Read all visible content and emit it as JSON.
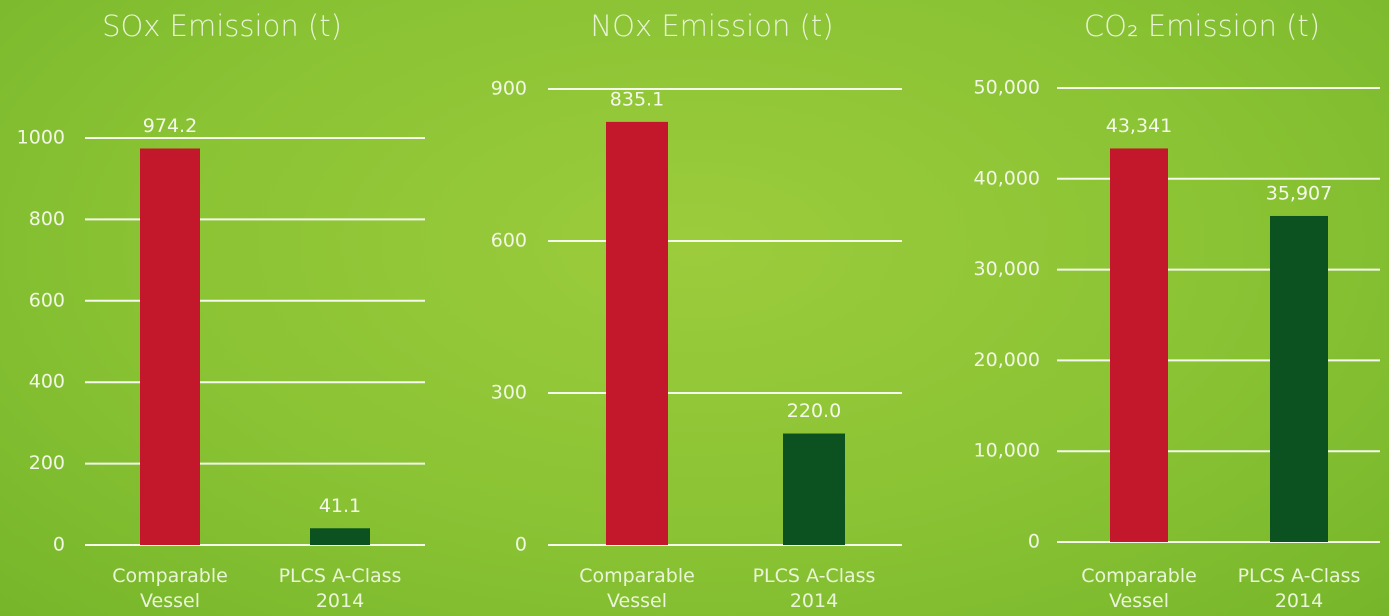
{
  "chart_data": [
    {
      "type": "bar",
      "title": "SOx Emission (t)",
      "categories": [
        "Comparable Vessel",
        "PLCS A-Class 2014"
      ],
      "values": [
        974.2,
        41.1
      ],
      "colors": [
        "#c3172b",
        "#0b5220"
      ],
      "ylim": [
        0,
        1000
      ],
      "yticks": [
        0,
        200,
        400,
        600,
        800,
        1000
      ],
      "grid": true
    },
    {
      "type": "bar",
      "title": "NOx Emission (t)",
      "categories": [
        "Comparable Vessel",
        "PLCS A-Class 2014"
      ],
      "values": [
        835.1,
        220
      ],
      "value_labels": [
        "835.1",
        "220.0"
      ],
      "colors": [
        "#c3172b",
        "#0b5220"
      ],
      "ylim": [
        0,
        900
      ],
      "yticks": [
        0,
        300,
        600,
        900
      ],
      "grid": true
    },
    {
      "type": "bar",
      "title": "CO₂ Emission (t)",
      "categories": [
        "Comparable Vessel",
        "PLCS A-Class 2014"
      ],
      "values": [
        43341,
        35907
      ],
      "value_labels": [
        "43,341",
        "35,907"
      ],
      "colors": [
        "#c3172b",
        "#0b5220"
      ],
      "ylim": [
        0,
        50000
      ],
      "yticks": [
        0,
        {
          "value": 10000,
          "label": "10,000"
        },
        {
          "value": 20000,
          "label": "20,000"
        },
        {
          "value": 30000,
          "label": "30,000"
        },
        {
          "value": 40000,
          "label": "40,000"
        },
        {
          "value": 50000,
          "label": "50,000"
        }
      ],
      "grid": true
    }
  ]
}
